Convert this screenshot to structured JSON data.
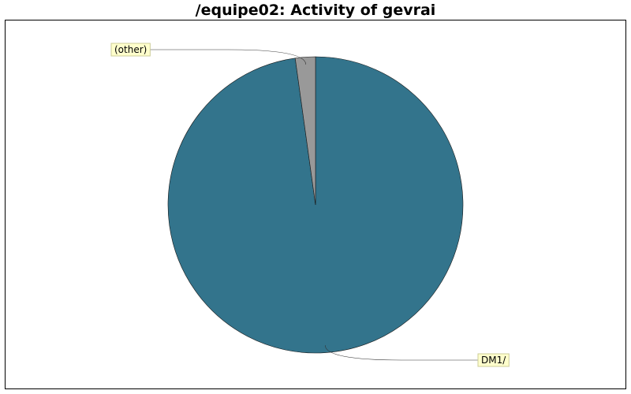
{
  "chart_data": {
    "type": "pie",
    "title": "/equipe02: Activity of gevrai",
    "slices": [
      {
        "label": "DM1/",
        "value": 97.8,
        "color": "#33748c"
      },
      {
        "label": "(other)",
        "value": 2.2,
        "color": "#999999"
      }
    ]
  }
}
